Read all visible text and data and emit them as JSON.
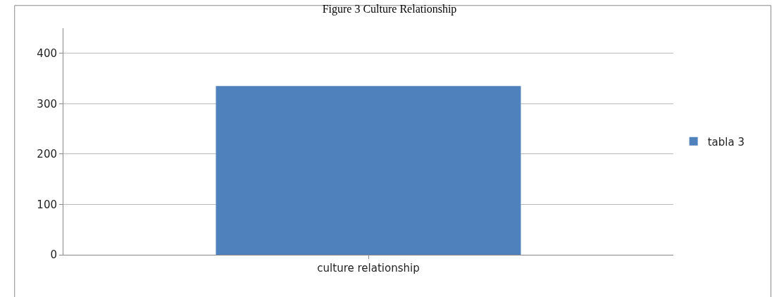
{
  "chart_data": {
    "type": "bar",
    "title": "Figure 3 Culture Relationship",
    "categories": [
      "culture relationship"
    ],
    "series": [
      {
        "name": "tabla 3",
        "color": "#4f81bd",
        "values": [
          335
        ]
      }
    ],
    "ylim": [
      0,
      450
    ],
    "yticks": [
      0,
      100,
      200,
      300,
      400
    ],
    "grid": "y",
    "legend": "right"
  }
}
